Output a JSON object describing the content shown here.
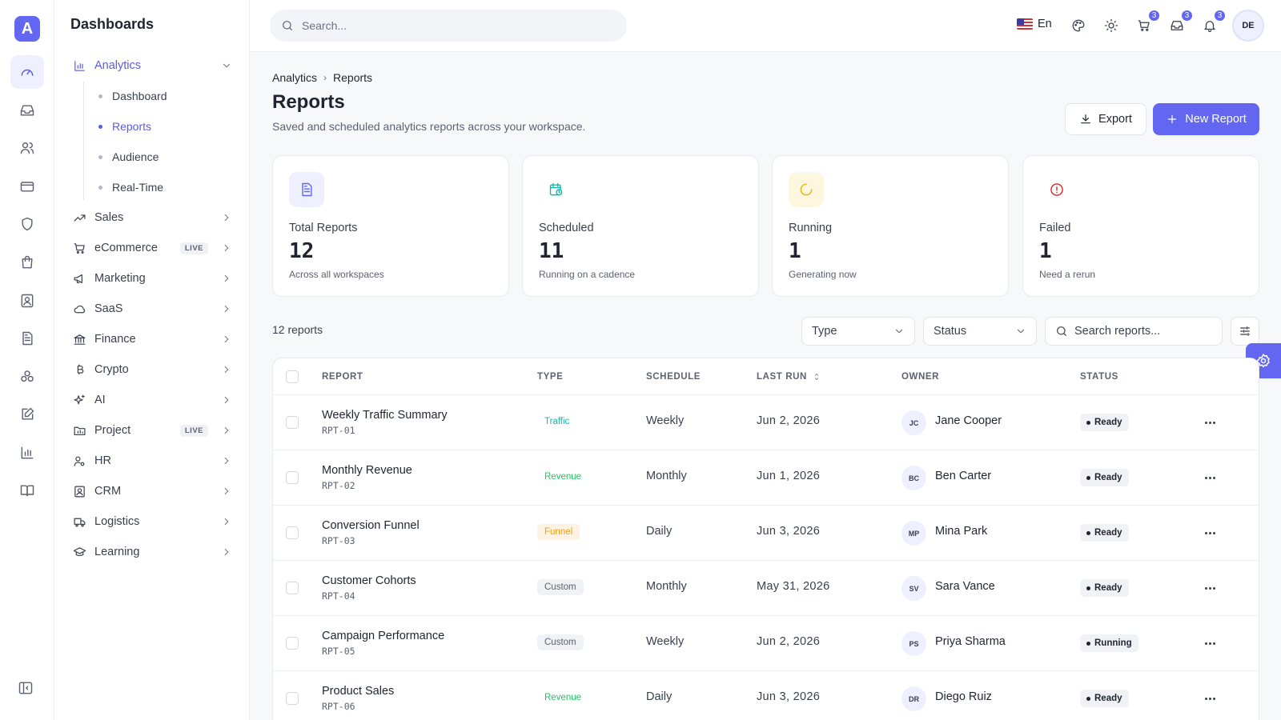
{
  "sidebar": {
    "title": "Dashboards",
    "analytics": {
      "label": "Analytics",
      "subitems": [
        "Dashboard",
        "Reports",
        "Audience",
        "Real-Time"
      ]
    },
    "items": [
      {
        "label": "Sales",
        "live": ""
      },
      {
        "label": "eCommerce",
        "live": "LIVE"
      },
      {
        "label": "Marketing",
        "live": ""
      },
      {
        "label": "SaaS",
        "live": ""
      },
      {
        "label": "Finance",
        "live": ""
      },
      {
        "label": "Crypto",
        "live": ""
      },
      {
        "label": "AI",
        "live": ""
      },
      {
        "label": "Project",
        "live": "LIVE"
      },
      {
        "label": "HR",
        "live": ""
      },
      {
        "label": "CRM",
        "live": ""
      },
      {
        "label": "Logistics",
        "live": ""
      },
      {
        "label": "Learning",
        "live": ""
      }
    ]
  },
  "topbar": {
    "search_placeholder": "Search...",
    "language": "En",
    "cart_count": "3",
    "inbox_count": "3",
    "notif_count": "3",
    "user_initials": "DE"
  },
  "header": {
    "breadcrumb": [
      "Analytics",
      "Reports"
    ],
    "title": "Reports",
    "subtitle": "Saved and scheduled analytics reports across your workspace.",
    "export_label": "Export",
    "new_label": "New Report"
  },
  "stats": [
    {
      "label": "Total Reports",
      "value": "12",
      "note": "Across all workspaces",
      "icon": "document-icon"
    },
    {
      "label": "Scheduled",
      "value": "11",
      "note": "Running on a cadence",
      "icon": "calendar-clock-icon"
    },
    {
      "label": "Running",
      "value": "1",
      "note": "Generating now",
      "icon": "spinner-icon"
    },
    {
      "label": "Failed",
      "value": "1",
      "note": "Need a rerun",
      "icon": "alert-circle-icon"
    }
  ],
  "toolbar": {
    "count": "12 reports",
    "type_select": "Type",
    "status_select": "Status",
    "search_placeholder": "Search reports..."
  },
  "table": {
    "columns": [
      "REPORT",
      "TYPE",
      "SCHEDULE",
      "LAST RUN",
      "OWNER",
      "STATUS"
    ],
    "rows": [
      {
        "name": "Weekly Traffic Summary",
        "id": "RPT-01",
        "type": "Traffic",
        "schedule": "Weekly",
        "last_run": "Jun 2, 2026",
        "initials": "JC",
        "owner": "Jane Cooper",
        "status": "Ready"
      },
      {
        "name": "Monthly Revenue",
        "id": "RPT-02",
        "type": "Revenue",
        "schedule": "Monthly",
        "last_run": "Jun 1, 2026",
        "initials": "BC",
        "owner": "Ben Carter",
        "status": "Ready"
      },
      {
        "name": "Conversion Funnel",
        "id": "RPT-03",
        "type": "Funnel",
        "schedule": "Daily",
        "last_run": "Jun 3, 2026",
        "initials": "MP",
        "owner": "Mina Park",
        "status": "Ready"
      },
      {
        "name": "Customer Cohorts",
        "id": "RPT-04",
        "type": "Custom",
        "schedule": "Monthly",
        "last_run": "May 31, 2026",
        "initials": "SV",
        "owner": "Sara Vance",
        "status": "Ready"
      },
      {
        "name": "Campaign Performance",
        "id": "RPT-05",
        "type": "Custom",
        "schedule": "Weekly",
        "last_run": "Jun 2, 2026",
        "initials": "PS",
        "owner": "Priya Sharma",
        "status": "Running"
      },
      {
        "name": "Product Sales",
        "id": "RPT-06",
        "type": "Revenue",
        "schedule": "Daily",
        "last_run": "Jun 3, 2026",
        "initials": "DR",
        "owner": "Diego Ruiz",
        "status": "Ready"
      }
    ]
  },
  "colors": {
    "accent": "#6366f1",
    "traffic": "#14b8a6",
    "revenue": "#22c55e",
    "funnel": "#f59e0b",
    "failed": "#dc2626"
  }
}
